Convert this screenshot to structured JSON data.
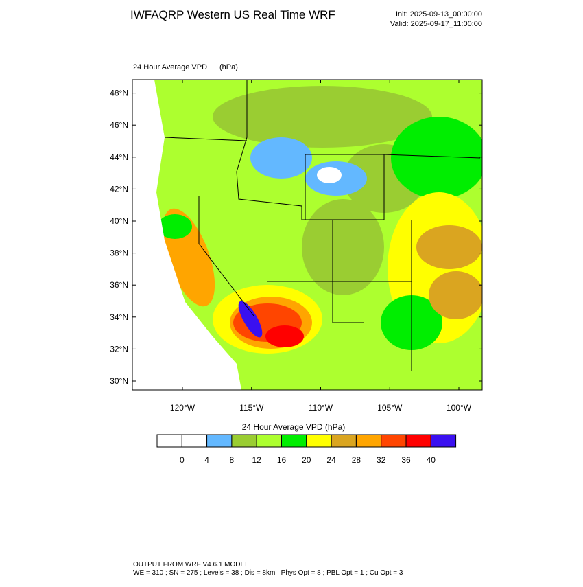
{
  "header": {
    "title": "IWFAQRP Western US Real Time WRF",
    "init": "Init: 2025-09-13_00:00:00",
    "valid": "Valid: 2025-09-17_11:00:00"
  },
  "map": {
    "field_label": "24 Hour Average VPD",
    "units": "(hPa)",
    "lat_ticks": [
      {
        "value": 30,
        "label": "30°N"
      },
      {
        "value": 32,
        "label": "32°N"
      },
      {
        "value": 34,
        "label": "34°N"
      },
      {
        "value": 36,
        "label": "36°N"
      },
      {
        "value": 38,
        "label": "38°N"
      },
      {
        "value": 40,
        "label": "40°N"
      },
      {
        "value": 42,
        "label": "42°N"
      },
      {
        "value": 44,
        "label": "44°N"
      },
      {
        "value": 46,
        "label": "46°N"
      },
      {
        "value": 48,
        "label": "48°N"
      }
    ],
    "lon_ticks": [
      {
        "value": -120,
        "label": "120°W"
      },
      {
        "value": -115,
        "label": "115°W"
      },
      {
        "value": -110,
        "label": "110°W"
      },
      {
        "value": -105,
        "label": "105°W"
      },
      {
        "value": -100,
        "label": "100°W"
      }
    ]
  },
  "colorbar": {
    "title": "24 Hour Average VPD  (hPa)",
    "levels": [
      0,
      4,
      8,
      12,
      16,
      20,
      24,
      28,
      32,
      36,
      40
    ],
    "colors": [
      "#ffffff",
      "#ffffff",
      "#63b8ff",
      "#9acd32",
      "#adff2f",
      "#00ee00",
      "#ffff00",
      "#daa520",
      "#ffa500",
      "#ff4500",
      "#ff0000",
      "#3a10f0"
    ]
  },
  "footer": {
    "line1": "OUTPUT FROM WRF V4.6.1 MODEL",
    "line2": "WE = 310 ; SN = 275 ; Levels = 38 ; Dis = 8km ; Phys Opt = 8 ; PBL Opt = 1 ; Cu Opt = 3"
  }
}
